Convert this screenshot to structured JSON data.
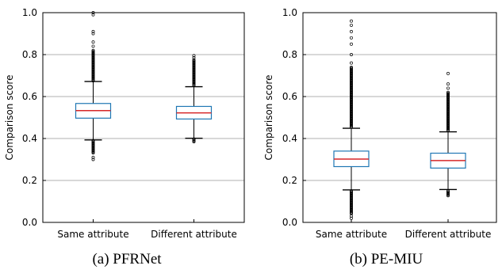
{
  "chart_data": [
    {
      "type": "box",
      "caption": "(a)  PFRNet",
      "ylabel": "Comparison score",
      "ylim": [
        0,
        1
      ],
      "yticks": [
        "0.0",
        "0.2",
        "0.4",
        "0.6",
        "0.8",
        "1.0"
      ],
      "yticks_values": [
        0.0,
        0.2,
        0.4,
        0.6,
        0.8,
        1.0
      ],
      "grid": "y",
      "categories": [
        "Same attribute",
        "Different attribute"
      ],
      "boxes": [
        {
          "name": "Same attribute",
          "q1": 0.497,
          "median": 0.533,
          "q3": 0.567,
          "whisker_low": 0.393,
          "whisker_high": 0.672,
          "outliers_high_dense": [
            0.675,
            0.82
          ],
          "outliers_low_dense": [
            0.33,
            0.39
          ],
          "outliers_high": [
            0.84,
            0.86,
            0.9,
            0.91,
            0.99,
            1.0
          ],
          "outliers_low": [
            0.3,
            0.31
          ]
        },
        {
          "name": "Different attribute",
          "q1": 0.493,
          "median": 0.522,
          "q3": 0.553,
          "whisker_low": 0.401,
          "whisker_high": 0.647,
          "outliers_high_dense": [
            0.65,
            0.775
          ],
          "outliers_low_dense": [
            0.383,
            0.398
          ],
          "outliers_high": [
            0.785,
            0.795
          ],
          "outliers_low": []
        }
      ],
      "colors": {
        "box": "#1f77b4",
        "median": "#d62728",
        "grid": "#b0b0b0",
        "whisker": "#000000"
      }
    },
    {
      "type": "box",
      "caption": "(b)  PE-MIU",
      "ylabel": "Comparison score",
      "ylim": [
        0,
        1
      ],
      "yticks": [
        "0.0",
        "0.2",
        "0.4",
        "0.6",
        "0.8",
        "1.0"
      ],
      "yticks_values": [
        0.0,
        0.2,
        0.4,
        0.6,
        0.8,
        1.0
      ],
      "grid": "y",
      "categories": [
        "Same attribute",
        "Different attribute"
      ],
      "boxes": [
        {
          "name": "Same attribute",
          "q1": 0.266,
          "median": 0.302,
          "q3": 0.34,
          "whisker_low": 0.155,
          "whisker_high": 0.449,
          "outliers_high_dense": [
            0.452,
            0.74
          ],
          "outliers_low_dense": [
            0.04,
            0.15
          ],
          "outliers_high": [
            0.76,
            0.8,
            0.85,
            0.88,
            0.91,
            0.94,
            0.96
          ],
          "outliers_low": [
            0.02,
            0.03
          ]
        },
        {
          "name": "Different attribute",
          "q1": 0.259,
          "median": 0.295,
          "q3": 0.33,
          "whisker_low": 0.157,
          "whisker_high": 0.432,
          "outliers_high_dense": [
            0.435,
            0.62
          ],
          "outliers_low_dense": [
            0.125,
            0.15
          ],
          "outliers_high": [
            0.64,
            0.66,
            0.71
          ],
          "outliers_low": []
        }
      ],
      "colors": {
        "box": "#1f77b4",
        "median": "#d62728",
        "grid": "#b0b0b0",
        "whisker": "#000000"
      }
    }
  ]
}
